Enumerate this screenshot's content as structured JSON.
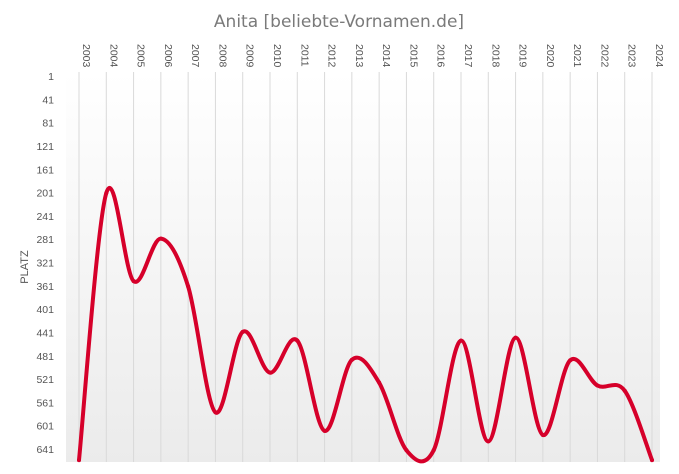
{
  "chart_data": {
    "type": "line",
    "title": "Anita [beliebte-Vornamen.de]",
    "ylabel": "PLATZ",
    "xlabel": "",
    "y_inverted": true,
    "ylim": [
      1,
      660
    ],
    "y_ticks": [
      "1",
      "41",
      "81",
      "121",
      "161",
      "201",
      "241",
      "281",
      "321",
      "361",
      "401",
      "441",
      "481",
      "521",
      "561",
      "601",
      "641"
    ],
    "x_position": "top",
    "x_label_rotation": "vertical",
    "grid": "vertical",
    "categories": [
      "2003",
      "2004",
      "2005",
      "2006",
      "2007",
      "2008",
      "2009",
      "2010",
      "2011",
      "2012",
      "2013",
      "2014",
      "2015",
      "2016",
      "2017",
      "2018",
      "2019",
      "2020",
      "2021",
      "2022",
      "2023",
      "2024"
    ],
    "series": [
      {
        "name": "",
        "color": "#d6002a",
        "values": [
          660,
          202,
          353,
          280,
          362,
          578,
          440,
          510,
          455,
          610,
          488,
          527,
          643,
          643,
          455,
          628,
          450,
          617,
          489,
          532,
          541,
          660
        ]
      }
    ]
  }
}
